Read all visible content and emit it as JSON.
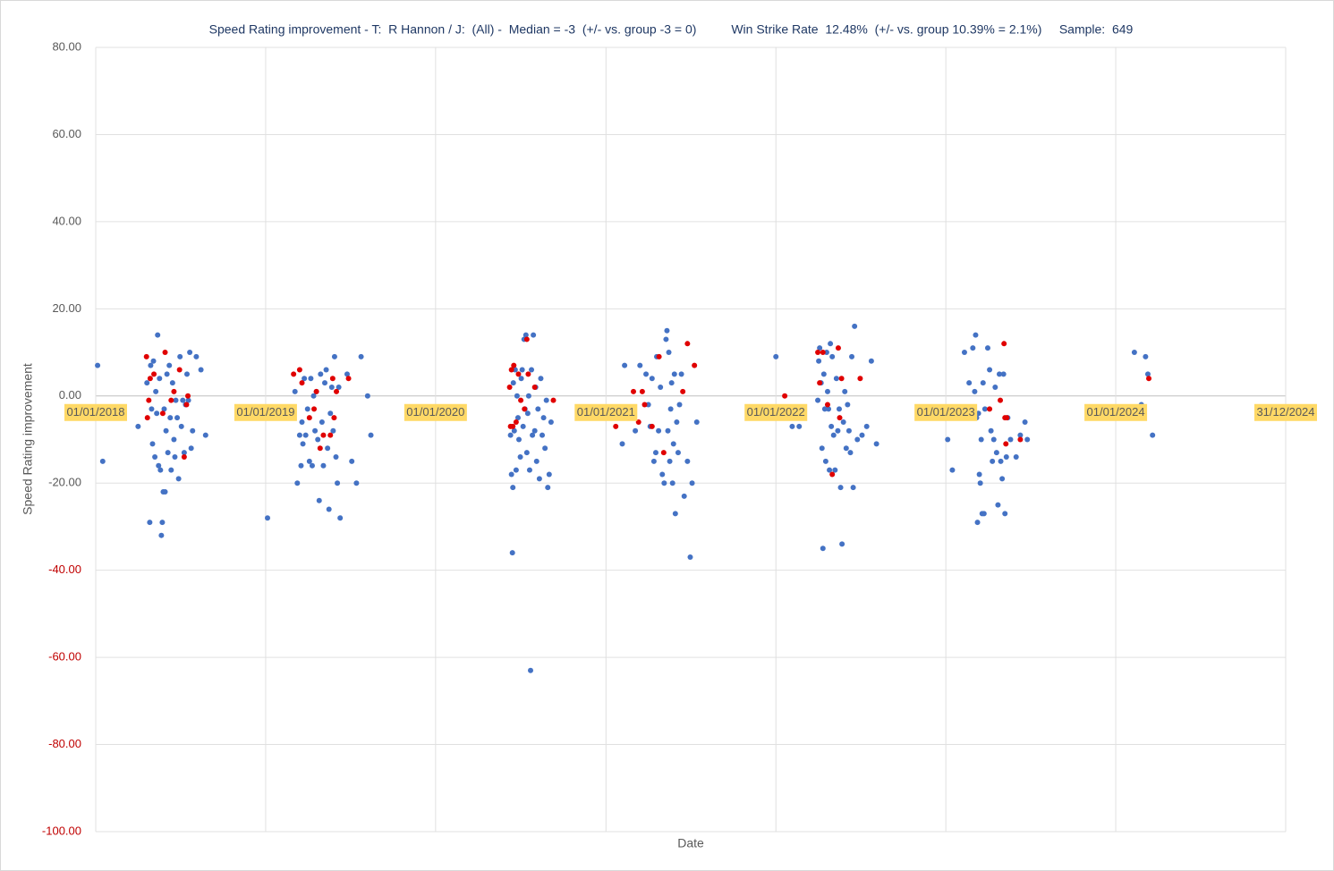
{
  "chart_data": {
    "type": "scatter",
    "title": "Speed Rating improvement - T:  R Hannon / J:  (All) -  Median = -3  (+/- vs. group -3 = 0)          Win Strike Rate  12.48%  (+/- vs. group 10.39% = 2.1%)     Sample:  649",
    "x_label": "Date",
    "y_label": "Speed Rating improvement",
    "xlim": [
      "01/01/2018",
      "31/12/2024"
    ],
    "xticks": [
      "01/01/2018",
      "01/01/2019",
      "01/01/2020",
      "01/01/2021",
      "01/01/2022",
      "01/01/2023",
      "01/01/2024",
      "31/12/2024"
    ],
    "ylim": [
      -100,
      80
    ],
    "yticks": [
      {
        "value": -100,
        "label": "-100.00",
        "color": "#c00000"
      },
      {
        "value": -80,
        "label": "-80.00",
        "color": "#c00000"
      },
      {
        "value": -60,
        "label": "-60.00",
        "color": "#c00000"
      },
      {
        "value": -40,
        "label": "-40.00",
        "color": "#c00000"
      },
      {
        "value": -20,
        "label": "-20.00"
      },
      {
        "value": 0,
        "label": "0.00"
      },
      {
        "value": 20,
        "label": "20.00"
      },
      {
        "value": 40,
        "label": "40.00"
      },
      {
        "value": 60,
        "label": "60.00"
      },
      {
        "value": 80,
        "label": "80.00"
      }
    ],
    "grid": true,
    "tick_label_background": "#ffd966",
    "series": [
      {
        "color": "#4472c4",
        "x": [
          "05/01/2018",
          "16/01/2018",
          "02/04/2018",
          "21/04/2018",
          "27/04/2018",
          "29/04/2018",
          "01/05/2018",
          "03/05/2018",
          "05/05/2018",
          "08/05/2018",
          "10/05/2018",
          "12/05/2018",
          "14/05/2018",
          "16/05/2018",
          "18/05/2018",
          "20/05/2018",
          "22/05/2018",
          "24/05/2018",
          "26/05/2018",
          "28/05/2018",
          "30/05/2018",
          "01/06/2018",
          "03/06/2018",
          "05/06/2018",
          "08/06/2018",
          "10/06/2018",
          "12/06/2018",
          "15/06/2018",
          "18/06/2018",
          "20/06/2018",
          "22/06/2018",
          "25/06/2018",
          "28/06/2018",
          "01/07/2018",
          "04/07/2018",
          "07/07/2018",
          "10/07/2018",
          "13/07/2018",
          "16/07/2018",
          "19/07/2018",
          "22/07/2018",
          "25/07/2018",
          "28/07/2018",
          "05/08/2018",
          "15/08/2018",
          "25/08/2018",
          "05/01/2019",
          "05/03/2019",
          "10/03/2019",
          "15/03/2019",
          "18/03/2019",
          "20/03/2019",
          "22/03/2019",
          "25/03/2019",
          "28/03/2019",
          "01/04/2019",
          "05/04/2019",
          "08/04/2019",
          "11/04/2019",
          "14/04/2019",
          "17/04/2019",
          "20/04/2019",
          "23/04/2019",
          "26/04/2019",
          "29/04/2019",
          "02/05/2019",
          "05/05/2019",
          "08/05/2019",
          "11/05/2019",
          "14/05/2019",
          "17/05/2019",
          "20/05/2019",
          "23/05/2019",
          "26/05/2019",
          "29/05/2019",
          "01/06/2019",
          "04/06/2019",
          "07/06/2019",
          "10/06/2019",
          "25/06/2019",
          "05/07/2019",
          "15/07/2019",
          "25/07/2019",
          "08/08/2019",
          "15/08/2019",
          "10/06/2020",
          "12/06/2020",
          "14/06/2020",
          "15/06/2020",
          "16/06/2020",
          "18/06/2020",
          "20/06/2020",
          "22/06/2020",
          "24/06/2020",
          "26/06/2020",
          "28/06/2020",
          "01/07/2020",
          "03/07/2020",
          "05/07/2020",
          "07/07/2020",
          "09/07/2020",
          "11/07/2020",
          "13/07/2020",
          "15/07/2020",
          "17/07/2020",
          "19/07/2020",
          "21/07/2020",
          "23/07/2020",
          "25/07/2020",
          "27/07/2020",
          "29/07/2020",
          "01/08/2020",
          "03/08/2020",
          "05/08/2020",
          "08/08/2020",
          "11/08/2020",
          "14/08/2020",
          "17/08/2020",
          "20/08/2020",
          "23/08/2020",
          "26/08/2020",
          "29/08/2020",
          "01/09/2020",
          "05/09/2020",
          "05/02/2021",
          "10/02/2021",
          "05/03/2021",
          "15/03/2021",
          "28/03/2021",
          "02/04/2021",
          "06/04/2021",
          "10/04/2021",
          "14/04/2021",
          "18/04/2021",
          "20/04/2021",
          "24/04/2021",
          "28/04/2021",
          "02/05/2021",
          "06/05/2021",
          "10/05/2021",
          "12/05/2021",
          "14/05/2021",
          "16/05/2021",
          "18/05/2021",
          "20/05/2021",
          "22/05/2021",
          "24/05/2021",
          "26/05/2021",
          "28/05/2021",
          "30/05/2021",
          "02/06/2021",
          "05/06/2021",
          "08/06/2021",
          "12/06/2021",
          "18/06/2021",
          "25/06/2021",
          "01/07/2021",
          "05/07/2021",
          "15/07/2021",
          "01/01/2022",
          "05/02/2022",
          "20/02/2022",
          "01/04/2022",
          "03/04/2022",
          "05/04/2022",
          "08/04/2022",
          "10/04/2022",
          "12/04/2022",
          "14/04/2022",
          "16/04/2022",
          "18/04/2022",
          "20/04/2022",
          "22/04/2022",
          "24/04/2022",
          "26/04/2022",
          "28/04/2022",
          "30/04/2022",
          "02/05/2022",
          "05/05/2022",
          "08/05/2022",
          "11/05/2022",
          "14/05/2022",
          "17/05/2022",
          "20/05/2022",
          "23/05/2022",
          "26/05/2022",
          "29/05/2022",
          "01/06/2022",
          "04/06/2022",
          "07/06/2022",
          "10/06/2022",
          "13/06/2022",
          "16/06/2022",
          "19/06/2022",
          "25/06/2022",
          "05/07/2022",
          "15/07/2022",
          "25/07/2022",
          "05/08/2022",
          "05/01/2023",
          "15/01/2023",
          "10/02/2023",
          "20/02/2023",
          "28/02/2023",
          "04/03/2023",
          "06/03/2023",
          "08/03/2023",
          "10/03/2023",
          "12/03/2023",
          "14/03/2023",
          "16/03/2023",
          "18/03/2023",
          "20/03/2023",
          "22/03/2023",
          "24/03/2023",
          "26/03/2023",
          "01/04/2023",
          "05/04/2023",
          "08/04/2023",
          "11/04/2023",
          "14/04/2023",
          "17/04/2023",
          "20/04/2023",
          "23/04/2023",
          "26/04/2023",
          "29/04/2023",
          "02/05/2023",
          "05/05/2023",
          "08/05/2023",
          "11/05/2023",
          "14/05/2023",
          "20/05/2023",
          "01/06/2023",
          "10/06/2023",
          "20/06/2023",
          "25/06/2023",
          "10/02/2024",
          "25/02/2024",
          "05/03/2024",
          "10/03/2024",
          "20/03/2024"
        ],
        "values": [
          7,
          -15,
          -7,
          3,
          -29,
          7,
          -3,
          -11,
          8,
          -14,
          1,
          -4,
          14,
          -16,
          4,
          -17,
          -32,
          -29,
          -22,
          -3,
          -22,
          -8,
          5,
          -13,
          7,
          -5,
          -17,
          3,
          -10,
          -14,
          -1,
          -5,
          -19,
          9,
          -7,
          -1,
          -13,
          -2,
          5,
          -1,
          10,
          -12,
          -8,
          9,
          6,
          -9,
          -28,
          1,
          -20,
          -9,
          -16,
          -6,
          -11,
          4,
          -9,
          -3,
          -15,
          4,
          -16,
          0,
          -8,
          1,
          -10,
          -24,
          5,
          -6,
          -16,
          3,
          6,
          -12,
          -26,
          -4,
          2,
          -8,
          9,
          -14,
          -20,
          2,
          -28,
          5,
          -15,
          -20,
          9,
          0,
          -9,
          -9,
          -18,
          -36,
          -21,
          3,
          -8,
          6,
          -17,
          0,
          -5,
          -10,
          -14,
          4,
          6,
          -7,
          13,
          -3,
          14,
          -13,
          -4,
          0,
          -17,
          -63,
          6,
          -9,
          14,
          -8,
          2,
          -15,
          -3,
          -19,
          4,
          -9,
          -5,
          -12,
          -1,
          -21,
          -18,
          -6,
          -11,
          7,
          -8,
          7,
          5,
          -2,
          -7,
          4,
          -15,
          -13,
          9,
          -8,
          2,
          -18,
          -20,
          13,
          15,
          -8,
          10,
          -15,
          -3,
          3,
          -20,
          -11,
          5,
          -27,
          -6,
          -13,
          -2,
          5,
          -23,
          -15,
          -37,
          -20,
          -6,
          9,
          -7,
          -7,
          -1,
          8,
          11,
          3,
          -12,
          -35,
          5,
          -3,
          -15,
          10,
          1,
          -3,
          -17,
          12,
          -7,
          9,
          -9,
          -17,
          4,
          -8,
          -3,
          -21,
          -34,
          -6,
          1,
          -12,
          -2,
          -8,
          -13,
          9,
          -21,
          16,
          -10,
          -9,
          -7,
          8,
          -11,
          -10,
          -17,
          10,
          3,
          11,
          1,
          14,
          -5,
          -29,
          -4,
          -18,
          -20,
          -10,
          -27,
          3,
          -27,
          -3,
          11,
          6,
          -8,
          -15,
          -10,
          2,
          -13,
          -25,
          5,
          -15,
          -19,
          5,
          -27,
          -14,
          -5,
          -10,
          -14,
          -9,
          -6,
          -10,
          10,
          -2,
          9,
          5,
          -9
        ]
      },
      {
        "color": "#e00000",
        "x": [
          "20/04/2018",
          "22/04/2018",
          "25/04/2018",
          "28/04/2018",
          "06/05/2018",
          "25/05/2018",
          "30/05/2018",
          "12/06/2018",
          "18/06/2018",
          "30/06/2018",
          "10/07/2018",
          "15/07/2018",
          "18/07/2018",
          "02/03/2019",
          "15/03/2019",
          "20/03/2019",
          "05/04/2019",
          "15/04/2019",
          "20/04/2019",
          "28/04/2019",
          "05/05/2019",
          "20/05/2019",
          "25/05/2019",
          "28/05/2019",
          "02/06/2019",
          "28/06/2019",
          "08/06/2020",
          "10/06/2020",
          "12/06/2020",
          "15/06/2020",
          "17/06/2020",
          "22/06/2020",
          "27/06/2020",
          "02/07/2020",
          "10/07/2020",
          "15/07/2020",
          "18/07/2020",
          "01/08/2020",
          "10/09/2020",
          "22/01/2021",
          "01/03/2021",
          "12/03/2021",
          "20/03/2021",
          "25/03/2021",
          "10/04/2021",
          "25/04/2021",
          "05/05/2021",
          "15/06/2021",
          "25/06/2021",
          "10/07/2021",
          "20/01/2022",
          "01/04/2022",
          "05/04/2022",
          "12/04/2022",
          "22/04/2022",
          "02/05/2022",
          "15/05/2022",
          "18/05/2022",
          "22/05/2022",
          "01/07/2022",
          "05/04/2023",
          "28/04/2023",
          "06/05/2023",
          "08/05/2023",
          "10/05/2023",
          "12/05/2023",
          "10/06/2023",
          "12/03/2024"
        ],
        "values": [
          9,
          -5,
          -1,
          4,
          5,
          -4,
          10,
          -1,
          1,
          6,
          -14,
          -2,
          0,
          5,
          6,
          3,
          -5,
          -3,
          1,
          -12,
          -9,
          -9,
          4,
          -5,
          1,
          4,
          2,
          -7,
          6,
          -7,
          7,
          -6,
          5,
          -1,
          -3,
          13,
          5,
          2,
          -1,
          -7,
          1,
          -6,
          1,
          -2,
          -7,
          9,
          -13,
          1,
          12,
          7,
          0,
          10,
          3,
          10,
          -2,
          -18,
          11,
          -5,
          4,
          4,
          -3,
          -1,
          12,
          -5,
          -11,
          -5,
          -10,
          4
        ]
      }
    ]
  }
}
